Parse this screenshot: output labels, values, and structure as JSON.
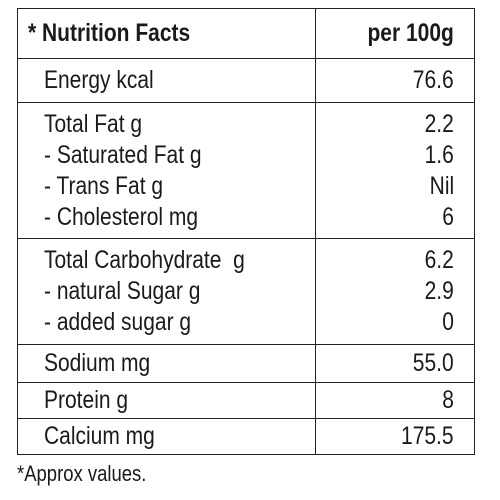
{
  "header": {
    "title": "* Nutrition Facts",
    "column": "per 100g"
  },
  "rows": [
    {
      "items": [
        {
          "label": "Energy kcal",
          "value": "76.6"
        }
      ]
    },
    {
      "items": [
        {
          "label": "Total Fat g",
          "value": "2.2"
        },
        {
          "label": "- Saturated Fat g",
          "value": "1.6"
        },
        {
          "label": "- Trans Fat g",
          "value": "Nil"
        },
        {
          "label": "- Cholesterol mg",
          "value": "6"
        }
      ]
    },
    {
      "items": [
        {
          "label": "Total Carbohydrate  g",
          "value": "6.2"
        },
        {
          "label": "- natural Sugar g",
          "value": "2.9"
        },
        {
          "label": "- added sugar g",
          "value": "0"
        }
      ]
    },
    {
      "items": [
        {
          "label": "Sodium mg",
          "value": "55.0"
        }
      ]
    },
    {
      "items": [
        {
          "label": "Protein g",
          "value": "8"
        }
      ]
    },
    {
      "items": [
        {
          "label": "Calcium mg",
          "value": "175.5"
        }
      ]
    }
  ],
  "footnote": "*Approx values."
}
